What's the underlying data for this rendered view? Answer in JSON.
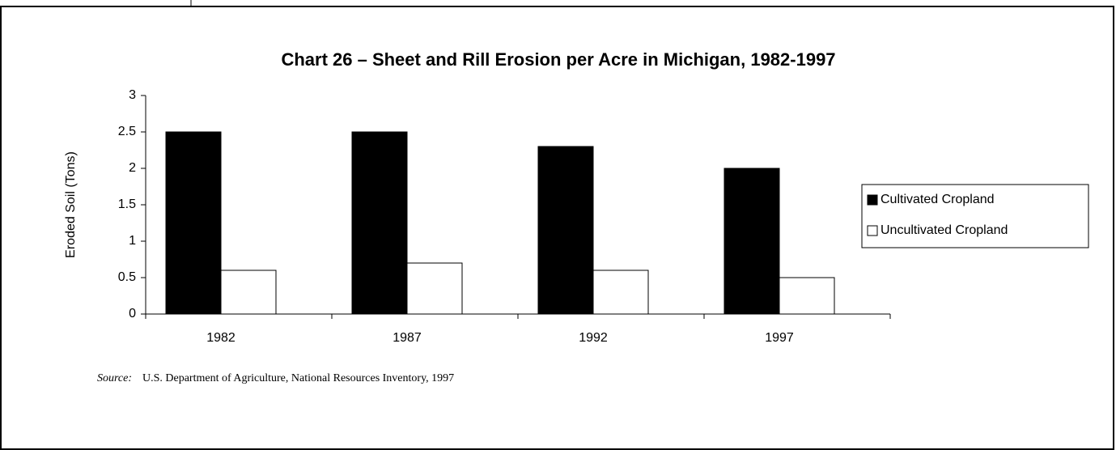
{
  "chart_data": {
    "type": "bar",
    "title": "Chart 26 – Sheet and Rill Erosion per Acre in Michigan, 1982-1997",
    "ylabel": "Eroded Soil (Tons)",
    "categories": [
      "1982",
      "1987",
      "1992",
      "1997"
    ],
    "series": [
      {
        "name": "Cultivated Cropland",
        "color": "#000000",
        "values": [
          2.5,
          2.5,
          2.3,
          2.0
        ]
      },
      {
        "name": "Uncultivated Cropland",
        "color": "#ffffff",
        "values": [
          0.6,
          0.7,
          0.6,
          0.5
        ]
      }
    ],
    "ylim": [
      0,
      3
    ],
    "yticks": [
      0,
      0.5,
      1,
      1.5,
      2,
      2.5,
      3
    ],
    "legend": "right",
    "source": {
      "label": "Source:",
      "text": "U.S. Department of Agriculture, National Resources Inventory, 1997"
    }
  }
}
